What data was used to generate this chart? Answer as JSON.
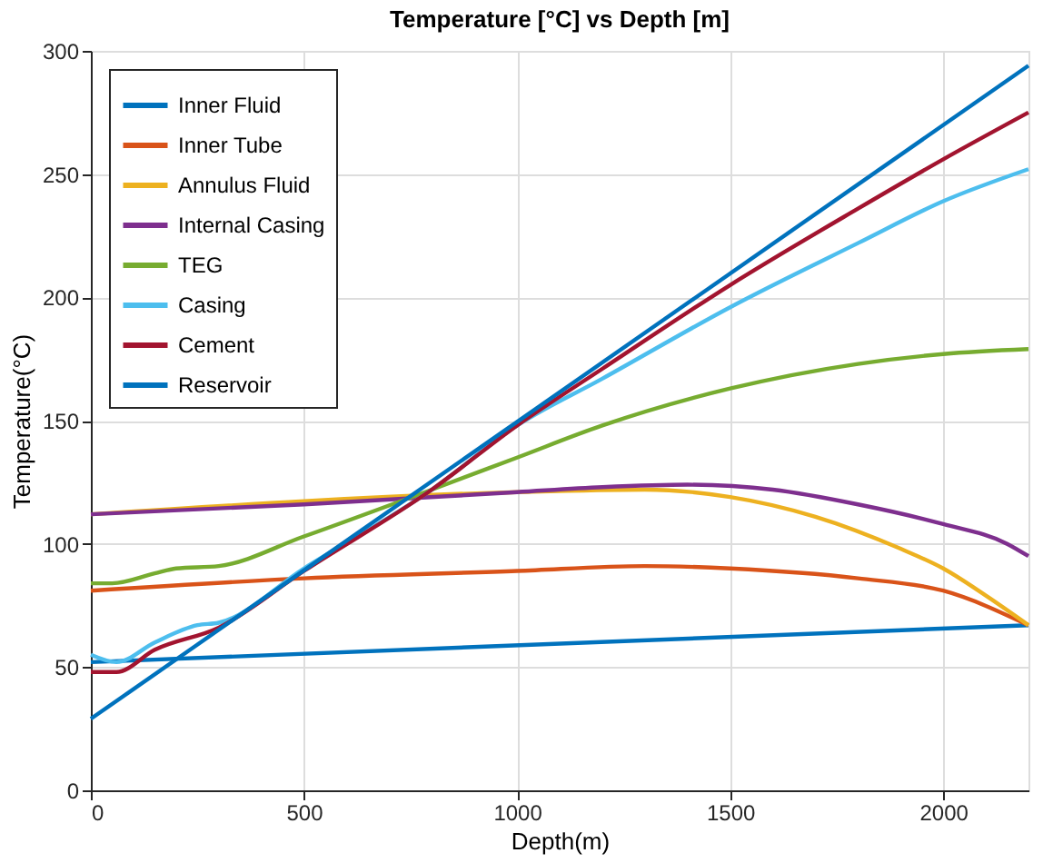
{
  "chart_data": {
    "type": "line",
    "title": "Temperature [°C] vs Depth [m]",
    "xlabel": "Depth(m)",
    "ylabel": "Temperature(°C)",
    "xlim": [
      0,
      2200
    ],
    "xticks": [
      0,
      500,
      1000,
      1500,
      2000
    ],
    "ylim": [
      0,
      300
    ],
    "yticks": [
      0,
      50,
      100,
      150,
      200,
      250,
      300
    ],
    "grid": true,
    "legend": "top left",
    "line_style": "solid",
    "marker": "none",
    "series": [
      {
        "name": "Inner Fluid",
        "color": "#0072bd",
        "x": [
          0,
          2200
        ],
        "values": [
          52,
          67
        ]
      },
      {
        "name": "Inner Tube",
        "color": "#d95319",
        "x": [
          0,
          500,
          1000,
          1300,
          1500,
          1800,
          2000,
          2200
        ],
        "values": [
          81,
          86,
          89,
          91,
          90,
          86,
          81,
          67
        ]
      },
      {
        "name": "Annulus Fluid",
        "color": "#edb120",
        "x": [
          0,
          1000,
          1300,
          1500,
          1700,
          1900,
          2000,
          2100,
          2200
        ],
        "values": [
          112,
          121,
          122,
          119,
          111,
          98,
          90,
          79,
          67
        ]
      },
      {
        "name": "Internal Casing",
        "color": "#7e2f8e",
        "x": [
          0,
          500,
          1000,
          1200,
          1400,
          1600,
          1800,
          2000,
          2150,
          2200
        ],
        "values": [
          112,
          116,
          121,
          123,
          124,
          122,
          116,
          108,
          100,
          95
        ]
      },
      {
        "name": "TEG",
        "color": "#77ac30",
        "x": [
          0,
          50,
          150,
          200,
          300,
          500,
          800,
          1000,
          1200,
          1500,
          1800,
          2000,
          2200
        ],
        "values": [
          84,
          84,
          88,
          90,
          91,
          103,
          122,
          135,
          148,
          163,
          173,
          177,
          179
        ]
      },
      {
        "name": "Casing",
        "color": "#4dbeee",
        "x": [
          0,
          60,
          150,
          250,
          300,
          500,
          800,
          1000,
          1200,
          1500,
          1800,
          2000,
          2200
        ],
        "values": [
          55,
          52,
          60,
          67,
          68,
          90,
          122,
          148,
          167,
          196,
          222,
          239,
          252
        ]
      },
      {
        "name": "Cement",
        "color": "#a2142f",
        "x": [
          0,
          60,
          150,
          300,
          500,
          800,
          1000,
          1200,
          1500,
          1800,
          2000,
          2200
        ],
        "values": [
          48,
          48,
          57,
          66,
          89,
          122,
          148,
          171,
          205,
          236,
          256,
          275
        ]
      },
      {
        "name": "Reservoir",
        "color": "#0072bd",
        "x": [
          0,
          2200
        ],
        "values": [
          29,
          294
        ]
      }
    ]
  }
}
